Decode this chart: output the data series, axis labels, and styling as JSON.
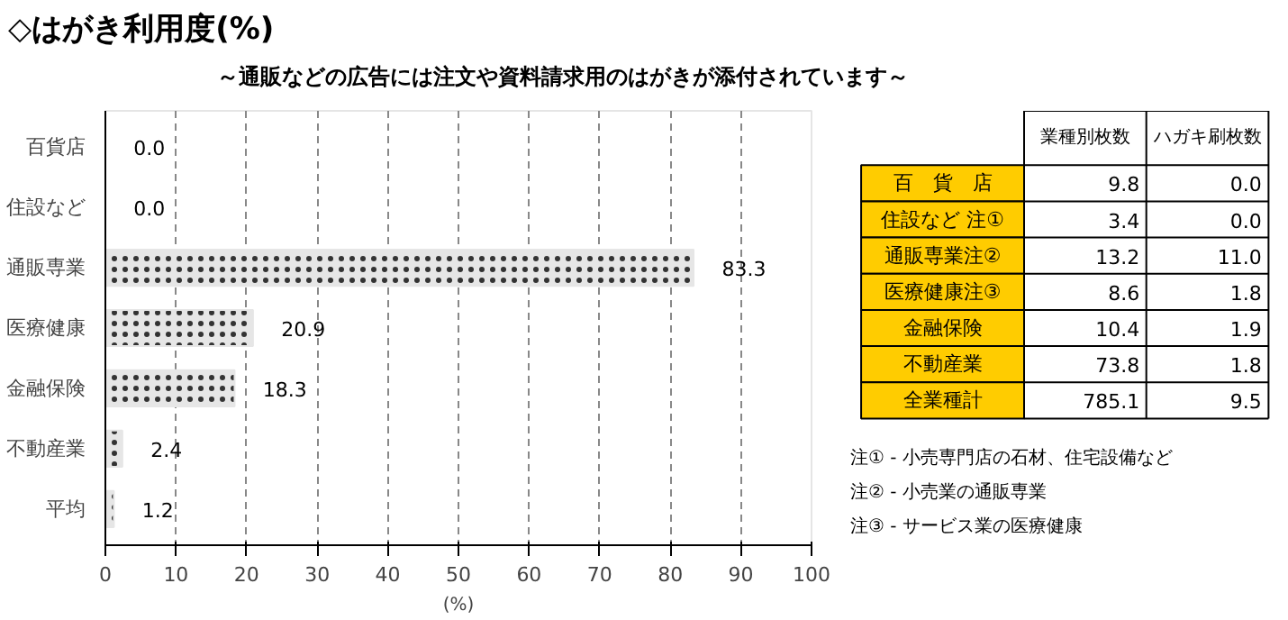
{
  "chart_data": [
    {
      "type": "bar",
      "orientation": "horizontal",
      "title": "◇はがき利用度(%)",
      "subtitle": "～通販などの広告には注文や資料請求用のはがきが添付されています～",
      "xlabel": "(%)",
      "categories": [
        "百貨店",
        "住設など",
        "通販専業",
        "医療健康",
        "金融保険",
        "不動産業",
        "平均"
      ],
      "values": [
        0.0,
        0.0,
        83.3,
        20.9,
        18.3,
        2.4,
        1.2
      ],
      "color": "#e6e6e6",
      "value_labels": [
        "0.0",
        "0.0",
        "83.3",
        "20.9",
        "18.3",
        "2.4",
        "1.2"
      ],
      "xlim": [
        0,
        100
      ],
      "xticks": [
        0,
        10,
        20,
        30,
        40,
        50,
        60,
        70,
        80,
        90,
        100
      ],
      "grid": "x"
    },
    {
      "type": "other",
      "categories": [
        "百　貨　店",
        "住設など 注①",
        "通販専業注②",
        "医療健康注③",
        "金融保険",
        "不動産業",
        "全業種計"
      ],
      "series": [
        {
          "name": "業種別枚数",
          "values": [
            9.8,
            3.4,
            13.2,
            8.6,
            10.4,
            73.8,
            785.1
          ],
          "value_labels": [
            "9.8",
            "3.4",
            "13.2",
            "8.6",
            "10.4",
            "73.8",
            "785.1"
          ]
        },
        {
          "name": "ハガキ刷枚数",
          "values": [
            0.0,
            0.0,
            11.0,
            1.8,
            1.9,
            1.8,
            9.5
          ],
          "value_labels": [
            "0.0",
            "0.0",
            "11.0",
            "1.8",
            "1.9",
            "1.8",
            "9.5"
          ]
        }
      ],
      "annotations": [
        "注① - 小売専門店の石材、住宅設備など",
        "注② - 小売業の通販専業",
        "注③ - サービス業の医療健康"
      ]
    }
  ]
}
